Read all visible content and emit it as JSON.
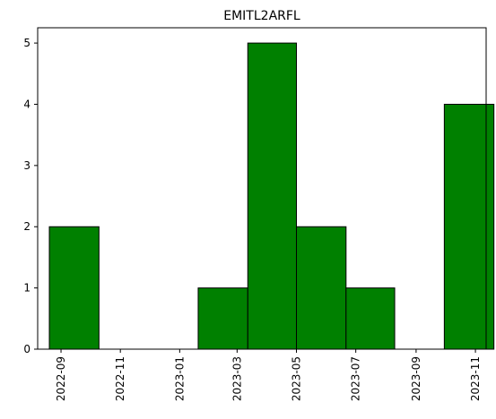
{
  "chart_data": {
    "type": "bar",
    "title": "EMITL2ARFL",
    "xlabel": "",
    "ylabel": "",
    "x_axis": {
      "type": "date",
      "range": [
        "2022-08-08",
        "2023-11-12"
      ],
      "ticks": [
        {
          "date": "2022-09-01",
          "label": "2022-09"
        },
        {
          "date": "2022-11-01",
          "label": "2022-11"
        },
        {
          "date": "2023-01-01",
          "label": "2023-01"
        },
        {
          "date": "2023-03-01",
          "label": "2023-03"
        },
        {
          "date": "2023-05-01",
          "label": "2023-05"
        },
        {
          "date": "2023-07-01",
          "label": "2023-07"
        },
        {
          "date": "2023-09-01",
          "label": "2023-09"
        },
        {
          "date": "2023-11-01",
          "label": "2023-11"
        }
      ],
      "tick_label_rotation": "vertical"
    },
    "y_axis": {
      "range": [
        0,
        5.25
      ],
      "ticks": [
        0,
        1,
        2,
        3,
        4,
        5
      ]
    },
    "bins": [
      {
        "start": "2022-08-20",
        "end": "2022-10-10",
        "count": 2
      },
      {
        "start": "2022-10-10",
        "end": "2022-11-30",
        "count": 0
      },
      {
        "start": "2022-11-30",
        "end": "2023-01-20",
        "count": 0
      },
      {
        "start": "2023-01-20",
        "end": "2023-03-12",
        "count": 1
      },
      {
        "start": "2023-03-12",
        "end": "2023-05-01",
        "count": 5
      },
      {
        "start": "2023-05-01",
        "end": "2023-06-21",
        "count": 2
      },
      {
        "start": "2023-06-21",
        "end": "2023-08-10",
        "count": 1
      },
      {
        "start": "2023-08-10",
        "end": "2023-09-30",
        "count": 0
      },
      {
        "start": "2023-09-30",
        "end": "2023-11-20",
        "count": 4
      }
    ],
    "bar_color": "#008000",
    "edge_color": "#000000",
    "grid": false,
    "legend": "none"
  }
}
